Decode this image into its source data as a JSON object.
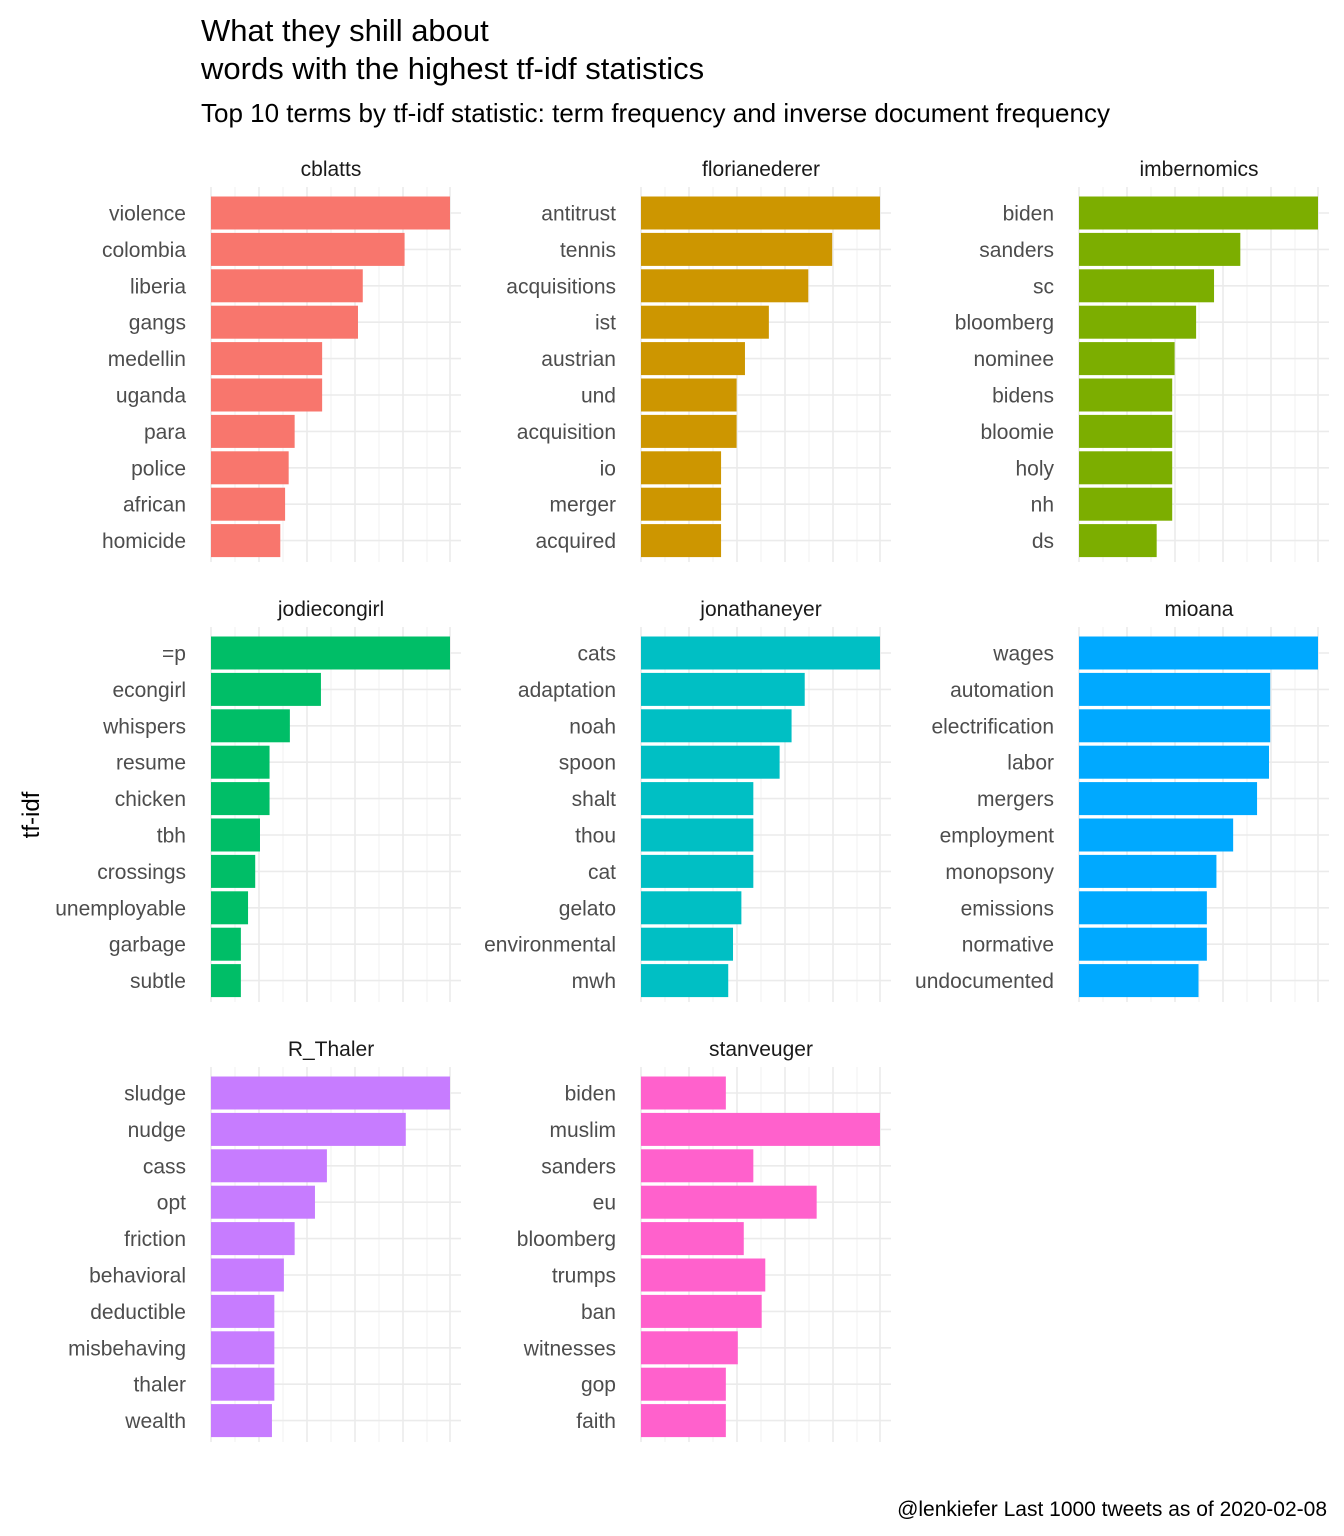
{
  "chart_data": {
    "type": "bar",
    "orientation": "horizontal",
    "title": [
      "What they shill about",
      "words with the highest tf-idf statistics"
    ],
    "subtitle": "Top 10 terms by tf-idf statistic: term frequency and inverse document frequency",
    "ylabel": "tf-idf",
    "caption": "@lenkiefer Last 1000 tweets as of 2020-02-08",
    "grid": true,
    "legend": "none",
    "facets": [
      {
        "name": "cblatts",
        "color": "#F8766D",
        "terms": [
          "violence",
          "colombia",
          "liberia",
          "gangs",
          "medellin",
          "uganda",
          "para",
          "police",
          "african",
          "homicide"
        ],
        "values": [
          1.0,
          0.81,
          0.635,
          0.615,
          0.465,
          0.465,
          0.35,
          0.325,
          0.31,
          0.29
        ]
      },
      {
        "name": "florianederer",
        "color": "#CD9600",
        "terms": [
          "antitrust",
          "tennis",
          "acquisitions",
          "ist",
          "austrian",
          "und",
          "acquisition",
          "io",
          "merger",
          "acquired"
        ],
        "values": [
          1.0,
          0.8,
          0.7,
          0.535,
          0.435,
          0.4,
          0.4,
          0.335,
          0.335,
          0.335
        ]
      },
      {
        "name": "imbernomics",
        "color": "#7CAE00",
        "terms": [
          "biden",
          "sanders",
          "sc",
          "bloomberg",
          "nominee",
          "bidens",
          "bloomie",
          "holy",
          "nh",
          "ds"
        ],
        "values": [
          1.0,
          0.675,
          0.565,
          0.49,
          0.4,
          0.39,
          0.39,
          0.39,
          0.39,
          0.325
        ]
      },
      {
        "name": "jodiecongirl",
        "color": "#00BE67",
        "terms": [
          "=p",
          "econgirl",
          "whispers",
          "resume",
          "chicken",
          "tbh",
          "crossings",
          "unemployable",
          "garbage",
          "subtle"
        ],
        "values": [
          1.0,
          0.46,
          0.33,
          0.245,
          0.245,
          0.205,
          0.185,
          0.155,
          0.125,
          0.125
        ]
      },
      {
        "name": "jonathaneyer",
        "color": "#00BFC4",
        "terms": [
          "cats",
          "adaptation",
          "noah",
          "spoon",
          "shalt",
          "thou",
          "cat",
          "gelato",
          "environmental",
          "mwh"
        ],
        "values": [
          1.0,
          0.685,
          0.63,
          0.58,
          0.47,
          0.47,
          0.47,
          0.42,
          0.385,
          0.365
        ]
      },
      {
        "name": "mioana",
        "color": "#00A9FF",
        "terms": [
          "wages",
          "automation",
          "electrification",
          "labor",
          "mergers",
          "employment",
          "monopsony",
          "emissions",
          "normative",
          "undocumented"
        ],
        "values": [
          1.0,
          0.8,
          0.8,
          0.795,
          0.745,
          0.645,
          0.575,
          0.535,
          0.535,
          0.5
        ]
      },
      {
        "name": "R_Thaler",
        "color": "#C77CFF",
        "terms": [
          "sludge",
          "nudge",
          "cass",
          "opt",
          "friction",
          "behavioral",
          "deductible",
          "misbehaving",
          "thaler",
          "wealth"
        ],
        "values": [
          1.0,
          0.815,
          0.485,
          0.435,
          0.35,
          0.305,
          0.265,
          0.265,
          0.265,
          0.255
        ]
      },
      {
        "name": "stanveuger",
        "color": "#FF61CC",
        "terms": [
          "biden",
          "muslim",
          "sanders",
          "eu",
          "bloomberg",
          "trumps",
          "ban",
          "witnesses",
          "gop",
          "faith"
        ],
        "values": [
          0.355,
          1.0,
          0.47,
          0.735,
          0.43,
          0.52,
          0.505,
          0.405,
          0.355,
          0.355
        ]
      }
    ]
  }
}
